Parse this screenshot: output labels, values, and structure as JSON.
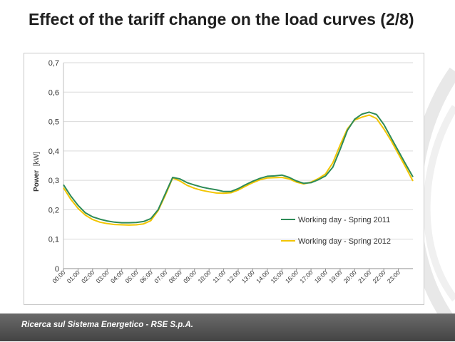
{
  "slide": {
    "title": "Effect of the tariff change on the load curves (2/8)",
    "footer": "Ricerca sul Sistema Energetico - RSE S.p.A."
  },
  "colors": {
    "series_2011": "#2e8b57",
    "series_2012": "#f2c500",
    "grid": "#d9d9d9",
    "footer": "#555555"
  },
  "chart_data": {
    "type": "line",
    "title": "",
    "xlabel": "",
    "ylabel_bold": "Power",
    "ylabel_unit": "[kW]",
    "ylim": [
      0,
      0.7
    ],
    "yticks": [
      0,
      0.1,
      0.2,
      0.3,
      0.4,
      0.5,
      0.6,
      0.7
    ],
    "ytick_labels": [
      "0",
      "0,1",
      "0,2",
      "0,3",
      "0,4",
      "0,5",
      "0,6",
      "0,7"
    ],
    "xtick_labels": [
      "00:00",
      "01:00",
      "02:00",
      "03:00",
      "04:00",
      "05:00",
      "06:00",
      "07:00",
      "08:00",
      "09:00",
      "10:00",
      "11:00",
      "12:00",
      "13:00",
      "14:00",
      "15:00",
      "16:00",
      "17:00",
      "18:00",
      "19:00",
      "20:00",
      "21:00",
      "22:00",
      "23:00"
    ],
    "x_start_hour": 0,
    "x_step_hours": 0.5,
    "grid": true,
    "legend_position": "bottom-right",
    "series": [
      {
        "name": "Working day - Spring 2011",
        "color": "#2e8b57",
        "values": [
          0.285,
          0.247,
          0.215,
          0.19,
          0.176,
          0.168,
          0.162,
          0.158,
          0.156,
          0.156,
          0.157,
          0.16,
          0.17,
          0.2,
          0.255,
          0.31,
          0.305,
          0.292,
          0.284,
          0.277,
          0.272,
          0.268,
          0.262,
          0.262,
          0.272,
          0.285,
          0.297,
          0.307,
          0.314,
          0.315,
          0.318,
          0.31,
          0.298,
          0.29,
          0.292,
          0.302,
          0.315,
          0.345,
          0.405,
          0.47,
          0.508,
          0.525,
          0.532,
          0.524,
          0.49,
          0.445,
          0.4,
          0.355,
          0.312
        ]
      },
      {
        "name": "Working day - Spring 2012",
        "color": "#f2c500",
        "values": [
          0.275,
          0.236,
          0.205,
          0.182,
          0.167,
          0.158,
          0.153,
          0.15,
          0.149,
          0.148,
          0.149,
          0.152,
          0.163,
          0.197,
          0.25,
          0.308,
          0.298,
          0.283,
          0.273,
          0.266,
          0.261,
          0.257,
          0.256,
          0.258,
          0.267,
          0.28,
          0.292,
          0.302,
          0.308,
          0.309,
          0.31,
          0.305,
          0.294,
          0.288,
          0.294,
          0.306,
          0.322,
          0.36,
          0.42,
          0.475,
          0.505,
          0.515,
          0.522,
          0.51,
          0.475,
          0.435,
          0.39,
          0.345,
          0.298
        ]
      }
    ]
  }
}
